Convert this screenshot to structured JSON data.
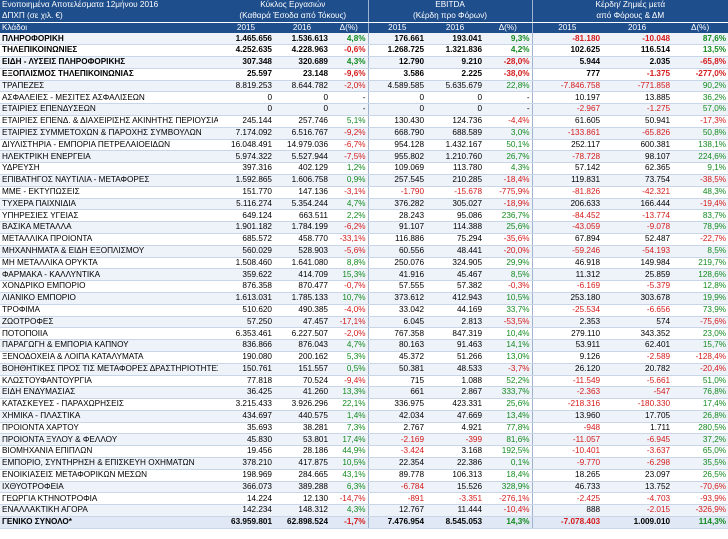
{
  "header": {
    "title": "Ενοποιημένα Αποτελέσματα 12μήνου 2016",
    "subtitle": "ΔΠΧΠ (σε χιλ. €)",
    "col_label": "Κλάδοι",
    "group1": "Κύκλος Εργασιών",
    "group1_sub": "(Καθαρά Έσοδα από Τόκους)",
    "group2": "EBITDA",
    "group2_sub": "(Κέρδη προ Φόρων)",
    "group3": "Κέρδη/ Ζημιές μετά",
    "group3_sub": "από Φόρους & ΔΜ",
    "y2015": "2015",
    "y2016": "2016",
    "delta": "Δ(%)"
  },
  "rows": [
    {
      "name": "ΠΛΗΡΟΦΟΡΙΚΗ",
      "s15": "1.465.656",
      "s16": "1.536.613",
      "sd": "4,8%",
      "e15": "176.661",
      "e16": "193.041",
      "ed": "9,3%",
      "p15": "-81.180",
      "p16": "-10.048",
      "pd": "87,6%",
      "bold": true
    },
    {
      "name": "ΤΗΛΕΠΙΚΟΙΝΩΝΙΕΣ",
      "s15": "4.252.635",
      "s16": "4.228.963",
      "sd": "-0,6%",
      "e15": "1.268.725",
      "e16": "1.321.836",
      "ed": "4,2%",
      "p15": "102.625",
      "p16": "116.514",
      "pd": "13,5%",
      "bold": true
    },
    {
      "name": "ΕΙΔΗ - ΛΥΣΕΙΣ ΠΛΗΡΟΦΟΡΙΚΗΣ",
      "s15": "307.348",
      "s16": "320.689",
      "sd": "4,3%",
      "e15": "12.790",
      "e16": "9.210",
      "ed": "-28,0%",
      "p15": "5.944",
      "p16": "2.035",
      "pd": "-65,8%",
      "bold": true
    },
    {
      "name": "ΕΞΟΠΛΙΣΜΟΣ ΤΗΛΕΠΙΚΟΙΝΩΝΙΑΣ",
      "s15": "25.597",
      "s16": "23.148",
      "sd": "-9,6%",
      "e15": "3.586",
      "e16": "2.225",
      "ed": "-38,0%",
      "p15": "777",
      "p16": "-1.375",
      "pd": "-277,0%",
      "bold": true
    },
    {
      "name": "ΤΡΑΠΕΖΕΣ",
      "s15": "8.819.253",
      "s16": "8.644.782",
      "sd": "-2,0%",
      "e15": "4.589.585",
      "e16": "5.635.679",
      "ed": "22,8%",
      "p15": "-7.846.758",
      "p16": "-771.858",
      "pd": "90,2%"
    },
    {
      "name": "ΑΣΦΑΛΕΙΕΣ - ΜΕΣΙΤΕΣ ΑΣΦΑΛΙΣΕΩΝ",
      "s15": "0",
      "s16": "0",
      "sd": "-",
      "e15": "0",
      "e16": "0",
      "ed": "-",
      "p15": "10.197",
      "p16": "13.885",
      "pd": "36,2%"
    },
    {
      "name": "ΕΤΑΙΡΙΕΣ ΕΠΕΝΔΥΣΕΩΝ",
      "s15": "0",
      "s16": "0",
      "sd": "-",
      "e15": "0",
      "e16": "0",
      "ed": "-",
      "p15": "-2.967",
      "p16": "-1.275",
      "pd": "57,0%"
    },
    {
      "name": "ΕΤΑΙΡΙΕΣ ΕΠΕΝΔ. & ΔΙΑΧΕΙΡΙΣΗΣ ΑΚΙΝΗΤΗΣ ΠΕΡΙΟΥΣΙΑΣ",
      "s15": "245.144",
      "s16": "257.746",
      "sd": "5,1%",
      "e15": "130.430",
      "e16": "124.736",
      "ed": "-4,4%",
      "p15": "61.605",
      "p16": "50.941",
      "pd": "-17,3%"
    },
    {
      "name": "ΕΤΑΙΡΙΕΣ ΣΥΜΜΕΤΟΧΩΝ & ΠΑΡΟΧΗΣ ΣΥΜΒΟΥΛΩΝ",
      "s15": "7.174.092",
      "s16": "6.516.767",
      "sd": "-9,2%",
      "e15": "668.790",
      "e16": "688.589",
      "ed": "3,0%",
      "p15": "-133.861",
      "p16": "-65.826",
      "pd": "50,8%"
    },
    {
      "name": "ΔΙΥΛΙΣΤΗΡΙΑ - ΕΜΠΟΡΙΑ ΠΕΤΡΕΛΑΙΟΕΙΔΩΝ",
      "s15": "16.048.491",
      "s16": "14.979.036",
      "sd": "-6,7%",
      "e15": "954.128",
      "e16": "1.432.167",
      "ed": "50,1%",
      "p15": "252.117",
      "p16": "600.381",
      "pd": "138,1%"
    },
    {
      "name": "ΗΛΕΚΤΡΙΚΗ ΕΝΕΡΓΕΙΑ",
      "s15": "5.974.322",
      "s16": "5.527.944",
      "sd": "-7,5%",
      "e15": "955.802",
      "e16": "1.210.760",
      "ed": "26,7%",
      "p15": "-78.728",
      "p16": "98.107",
      "pd": "224,6%"
    },
    {
      "name": "ΥΔΡΕΥΣΗ",
      "s15": "397.316",
      "s16": "402.129",
      "sd": "1,2%",
      "e15": "109.069",
      "e16": "113.780",
      "ed": "4,3%",
      "p15": "57.142",
      "p16": "62.365",
      "pd": "9,1%"
    },
    {
      "name": "ΕΠΙΒΑΤΗΓΟΣ ΝΑΥΤΙΛΙΑ - ΜΕΤΑΦΟΡΕΣ",
      "s15": "1.592.865",
      "s16": "1.606.758",
      "sd": "0,9%",
      "e15": "257.545",
      "e16": "210.285",
      "ed": "-18,4%",
      "p15": "119.831",
      "p16": "73.754",
      "pd": "-38,5%"
    },
    {
      "name": "ΜΜΕ - ΕΚΤΥΠΩΣΕΙΣ",
      "s15": "151.770",
      "s16": "147.136",
      "sd": "-3,1%",
      "e15": "-1.790",
      "e16": "-15.678",
      "ed": "-775,9%",
      "p15": "-81.826",
      "p16": "-42.321",
      "pd": "48,3%"
    },
    {
      "name": "ΤΥΧΕΡΑ ΠΑΙΧΝΙΔΙΑ",
      "s15": "5.116.274",
      "s16": "5.354.244",
      "sd": "4,7%",
      "e15": "376.282",
      "e16": "305.027",
      "ed": "-18,9%",
      "p15": "206.633",
      "p16": "166.444",
      "pd": "-19,4%"
    },
    {
      "name": "ΥΠΗΡΕΣΙΕΣ ΥΓΕΙΑΣ",
      "s15": "649.124",
      "s16": "663.511",
      "sd": "2,2%",
      "e15": "28.243",
      "e16": "95.086",
      "ed": "236,7%",
      "p15": "-84.452",
      "p16": "-13.774",
      "pd": "83,7%"
    },
    {
      "name": "ΒΑΣΙΚΑ ΜΕΤΑΛΛΑ",
      "s15": "1.901.182",
      "s16": "1.784.199",
      "sd": "-6,2%",
      "e15": "91.107",
      "e16": "114.388",
      "ed": "25,6%",
      "p15": "-43.059",
      "p16": "-9.078",
      "pd": "78,9%"
    },
    {
      "name": "ΜΕΤΑΛΛΙΚΑ ΠΡΟΙΟΝΤΑ",
      "s15": "685.572",
      "s16": "458.770",
      "sd": "-33,1%",
      "e15": "116.886",
      "e16": "75.294",
      "ed": "-35,6%",
      "p15": "67.894",
      "p16": "52.487",
      "pd": "-22,7%"
    },
    {
      "name": "ΜΗΧΑΝΗΜΑΤΑ & ΕΙΔΗ ΕΞΟΠΛΙΣΜΟΥ",
      "s15": "560.029",
      "s16": "528.903",
      "sd": "-5,6%",
      "e15": "60.556",
      "e16": "48.441",
      "ed": "-20,0%",
      "p15": "-59.246",
      "p16": "-54.193",
      "pd": "8,5%"
    },
    {
      "name": "ΜΗ ΜΕΤΑΛΛΙΚΑ ΟΡΥΚΤΑ",
      "s15": "1.508.460",
      "s16": "1.641.080",
      "sd": "8,8%",
      "e15": "250.076",
      "e16": "324.905",
      "ed": "29,9%",
      "p15": "46.918",
      "p16": "149.984",
      "pd": "219,7%"
    },
    {
      "name": "ΦΑΡΜΑΚΑ - ΚΑΛΛΥΝΤΙΚΑ",
      "s15": "359.622",
      "s16": "414.709",
      "sd": "15,3%",
      "e15": "41.916",
      "e16": "45.467",
      "ed": "8,5%",
      "p15": "11.312",
      "p16": "25.859",
      "pd": "128,6%"
    },
    {
      "name": "ΧΟΝΔΡΙΚΟ ΕΜΠΟΡΙΟ",
      "s15": "876.358",
      "s16": "870.477",
      "sd": "-0,7%",
      "e15": "57.555",
      "e16": "57.382",
      "ed": "-0,3%",
      "p15": "-6.169",
      "p16": "-5.379",
      "pd": "12,8%"
    },
    {
      "name": "ΛΙΑΝΙΚΟ ΕΜΠΟΡΙΟ",
      "s15": "1.613.031",
      "s16": "1.785.133",
      "sd": "10,7%",
      "e15": "373.612",
      "e16": "412.943",
      "ed": "10,5%",
      "p15": "253.180",
      "p16": "303.678",
      "pd": "19,9%"
    },
    {
      "name": "ΤΡΟΦΙΜΑ",
      "s15": "510.620",
      "s16": "490.385",
      "sd": "-4,0%",
      "e15": "33.042",
      "e16": "44.169",
      "ed": "33,7%",
      "p15": "-25.534",
      "p16": "-6.656",
      "pd": "73,9%"
    },
    {
      "name": "ΖΩΟΤΡΟΦΕΣ",
      "s15": "57.250",
      "s16": "47.457",
      "sd": "-17,1%",
      "e15": "6.045",
      "e16": "2.813",
      "ed": "-53,5%",
      "p15": "2.353",
      "p16": "574",
      "pd": "-75,6%"
    },
    {
      "name": "ΠΟΤΟΠΟΙΙΑ",
      "s15": "6.353.461",
      "s16": "6.227.507",
      "sd": "-2,0%",
      "e15": "767.358",
      "e16": "847.319",
      "ed": "10,4%",
      "p15": "279.110",
      "p16": "343.352",
      "pd": "23,0%"
    },
    {
      "name": "ΠΑΡΑΓΩΓΗ & ΕΜΠΟΡΙΑ ΚΑΠΝΟΥ",
      "s15": "836.866",
      "s16": "876.043",
      "sd": "4,7%",
      "e15": "80.163",
      "e16": "91.463",
      "ed": "14,1%",
      "p15": "53.911",
      "p16": "62.401",
      "pd": "15,7%"
    },
    {
      "name": "ΞΕΝΟΔΟΧΕΙΑ & ΛΟΙΠΑ ΚΑΤΑΛΥΜΑΤΑ",
      "s15": "190.080",
      "s16": "200.162",
      "sd": "5,3%",
      "e15": "45.372",
      "e16": "51.266",
      "ed": "13,0%",
      "p15": "9.126",
      "p16": "-2.589",
      "pd": "-128,4%"
    },
    {
      "name": "ΒΟΗΘΗΤΙΚΕΣ ΠΡΟΣ ΤΙΣ ΜΕΤΑΦΟΡΕΣ ΔΡΑΣΤΗΡΙΟΤΗΤΕΣ",
      "s15": "150.761",
      "s16": "151.557",
      "sd": "0,5%",
      "e15": "50.381",
      "e16": "48.533",
      "ed": "-3,7%",
      "p15": "26.120",
      "p16": "20.782",
      "pd": "-20,4%"
    },
    {
      "name": "ΚΛΩΣΤΟΥΦΑΝΤΟΥΡΓΙΑ",
      "s15": "77.818",
      "s16": "70.524",
      "sd": "-9,4%",
      "e15": "715",
      "e16": "1.088",
      "ed": "52,2%",
      "p15": "-11.549",
      "p16": "-5.661",
      "pd": "51,0%"
    },
    {
      "name": "ΕΙΔΗ ΕΝΔΥΜΑΣΙΑΣ",
      "s15": "36.425",
      "s16": "41.260",
      "sd": "13,3%",
      "e15": "661",
      "e16": "2.867",
      "ed": "333,7%",
      "p15": "-2.363",
      "p16": "-547",
      "pd": "76,8%"
    },
    {
      "name": "ΚΑΤΑΣΚΕΥΕΣ - ΠΑΡΑΧΩΡΗΣΕΙΣ",
      "s15": "3.215.433",
      "s16": "3.926.296",
      "sd": "22,1%",
      "e15": "336.975",
      "e16": "423.331",
      "ed": "25,6%",
      "p15": "-218.316",
      "p16": "-180.330",
      "pd": "17,4%"
    },
    {
      "name": "ΧΗΜΙΚΑ - ΠΛΑΣΤΙΚΑ",
      "s15": "434.697",
      "s16": "440.575",
      "sd": "1,4%",
      "e15": "42.034",
      "e16": "47.669",
      "ed": "13,4%",
      "p15": "13.960",
      "p16": "17.705",
      "pd": "26,8%"
    },
    {
      "name": "ΠΡΟΙΟΝΤΑ ΧΑΡΤΟΥ",
      "s15": "35.693",
      "s16": "38.281",
      "sd": "7,3%",
      "e15": "2.767",
      "e16": "4.921",
      "ed": "77,8%",
      "p15": "-948",
      "p16": "1.711",
      "pd": "280,5%"
    },
    {
      "name": "ΠΡΟΙΟΝΤΑ ΞΥΛΟΥ & ΦΕΛΛΟΥ",
      "s15": "45.830",
      "s16": "53.801",
      "sd": "17,4%",
      "e15": "-2.169",
      "e16": "-399",
      "ed": "81,6%",
      "p15": "-11.057",
      "p16": "-6.945",
      "pd": "37,2%"
    },
    {
      "name": "ΒΙΟΜΗΧΑΝΙΑ ΕΠΙΠΛΩΝ",
      "s15": "19.456",
      "s16": "28.186",
      "sd": "44,9%",
      "e15": "-3.424",
      "e16": "3.168",
      "ed": "192,5%",
      "p15": "-10.401",
      "p16": "-3.637",
      "pd": "65,0%"
    },
    {
      "name": "ΕΜΠΟΡΙΟ, ΣΥΝΤΗΡΗΣΗ & ΕΠΙΣΚΕΥΗ ΟΧΗΜΑΤΩΝ",
      "s15": "378.210",
      "s16": "417.875",
      "sd": "10,5%",
      "e15": "22.354",
      "e16": "22.386",
      "ed": "0,1%",
      "p15": "-9.770",
      "p16": "-6.298",
      "pd": "35,5%"
    },
    {
      "name": "ΕΝΟΙΚΙΑΣΕΙΣ ΜΕΤΑΦΟΡΙΚΩΝ ΜΕΣΩΝ",
      "s15": "198.969",
      "s16": "284.665",
      "sd": "43,1%",
      "e15": "89.778",
      "e16": "106.313",
      "ed": "18,4%",
      "p15": "18.265",
      "p16": "23.097",
      "pd": "26,5%"
    },
    {
      "name": "ΙΧΘΥΟΤΡΟΦΕΙΑ",
      "s15": "366.073",
      "s16": "389.288",
      "sd": "6,3%",
      "e15": "-6.784",
      "e16": "15.526",
      "ed": "328,9%",
      "p15": "46.733",
      "p16": "13.752",
      "pd": "-70,6%"
    },
    {
      "name": "ΓΕΩΡΓΙΑ ΚΤΗΝΟΤΡΟΦΙΑ",
      "s15": "14.224",
      "s16": "12.130",
      "sd": "-14,7%",
      "e15": "-891",
      "e16": "-3.351",
      "ed": "-276,1%",
      "p15": "-2.425",
      "p16": "-4.703",
      "pd": "-93,9%"
    },
    {
      "name": "ΕΝΑΛΛΑΚΤΙΚΗ ΑΓΟΡΑ",
      "s15": "142.234",
      "s16": "148.312",
      "sd": "4,3%",
      "e15": "12.767",
      "e16": "11.444",
      "ed": "-10,4%",
      "p15": "888",
      "p16": "-2.015",
      "pd": "-326,9%"
    }
  ],
  "total": {
    "name": "ΓΕΝΙΚΟ ΣΥΝΟΛΟ*",
    "s15": "63.959.801",
    "s16": "62.898.524",
    "sd": "-1,7%",
    "e15": "7.476.954",
    "e16": "8.545.053",
    "ed": "14,3%",
    "p15": "-7.078.403",
    "p16": "1.009.010",
    "pd": "114,3%"
  }
}
